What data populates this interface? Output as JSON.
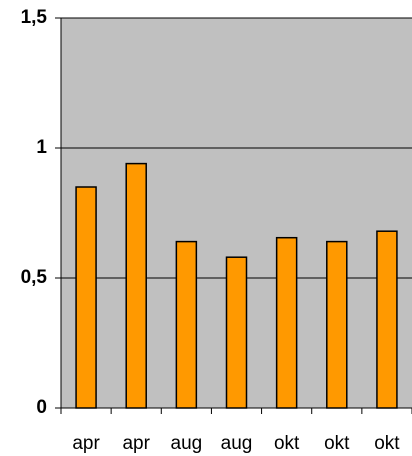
{
  "chart_data": {
    "type": "bar",
    "categories": [
      "apr",
      "apr",
      "aug",
      "aug",
      "okt",
      "okt",
      "okt"
    ],
    "values": [
      0.85,
      0.94,
      0.64,
      0.58,
      0.655,
      0.64,
      0.68
    ],
    "title": "",
    "xlabel": "",
    "ylabel": "",
    "ylim": [
      0,
      1.5
    ],
    "yticks": [
      0,
      0.5,
      1,
      1.5
    ],
    "ytick_labels": [
      "0",
      "0,5",
      "1",
      "1,5"
    ],
    "grid": true,
    "colors": {
      "plot_background": "#c0c0c0",
      "bar_fill": "#ff9900",
      "bar_stroke": "#000000",
      "gridline": "#000000"
    }
  }
}
